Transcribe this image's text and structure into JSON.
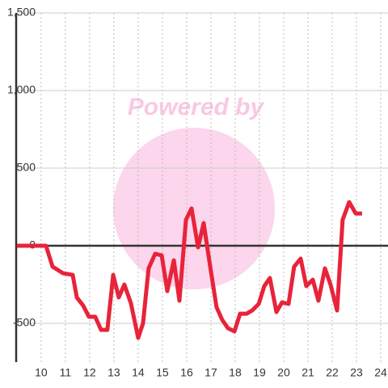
{
  "chart_data": {
    "type": "line",
    "watermark": "Powered by",
    "x": [
      9.0,
      10.2,
      10.47,
      10.9,
      11.3,
      11.47,
      11.73,
      11.97,
      12.23,
      12.47,
      12.73,
      12.97,
      13.2,
      13.43,
      13.7,
      14.0,
      14.2,
      14.43,
      14.7,
      14.97,
      15.2,
      15.47,
      15.7,
      15.97,
      16.2,
      16.47,
      16.7,
      16.97,
      17.23,
      17.47,
      17.7,
      17.97,
      18.2,
      18.47,
      18.7,
      18.97,
      19.2,
      19.43,
      19.7,
      19.93,
      20.2,
      20.43,
      20.7,
      20.93,
      21.2,
      21.43,
      21.7,
      21.93,
      22.2,
      22.43,
      22.7,
      22.97,
      23.23
    ],
    "series": [
      {
        "color": "#e8233a",
        "values": [
          0,
          0,
          -135,
          -177,
          -188,
          -333,
          -385,
          -458,
          -458,
          -542,
          -542,
          -188,
          -333,
          -250,
          -370,
          -594,
          -500,
          -146,
          -52,
          -62,
          -292,
          -94,
          -354,
          167,
          240,
          -10,
          146,
          -135,
          -396,
          -479,
          -531,
          -552,
          -438,
          -438,
          -417,
          -375,
          -260,
          -208,
          -427,
          -365,
          -375,
          -135,
          -83,
          -260,
          -219,
          -354,
          -146,
          -250,
          -417,
          167,
          281,
          208,
          208
        ]
      }
    ],
    "xlim": [
      8.97,
      24.3
    ],
    "xticks": [
      10,
      11,
      12,
      13,
      14,
      15,
      16,
      17,
      18,
      19,
      20,
      21,
      22,
      23,
      24
    ],
    "ylim": [
      -750,
      1500
    ],
    "yticks": [
      {
        "value": -500,
        "label": "-500"
      },
      0,
      500,
      {
        "value": 1000,
        "label": "1,000"
      },
      {
        "value": 1500,
        "label": "1,500"
      }
    ],
    "grid": true
  }
}
